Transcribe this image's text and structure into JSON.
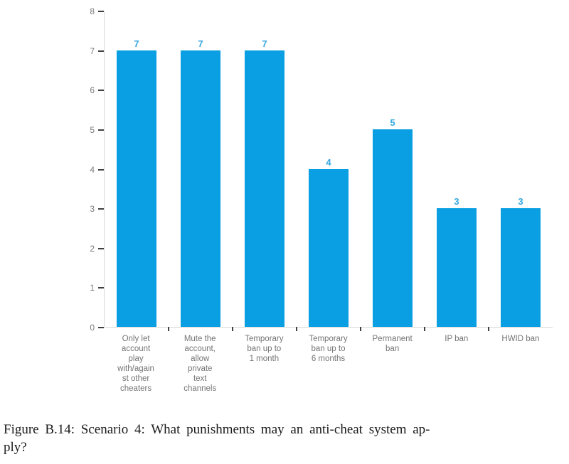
{
  "figure": {
    "caption_lines": [
      "Figure B.14: Scenario 4: What punishments may an anti-cheat system ap-",
      "ply?"
    ]
  },
  "chart_data": {
    "type": "bar",
    "title": "",
    "xlabel": "",
    "ylabel": "",
    "categories": [
      "Only let account play with/again st other cheaters",
      "Mute the account, allow private text channels",
      "Temporary ban up to 1 month",
      "Temporary ban up to 6 months",
      "Permanent ban",
      "IP ban",
      "HWID ban"
    ],
    "category_wrapped_lines": [
      "Only let\naccount\nplay\nwith/again\nst other\ncheaters",
      "Mute the\naccount,\nallow\nprivate\ntext\nchannels",
      "Temporary\nban up to\n1 month",
      "Temporary\nban up to\n6 months",
      "Permanent\nban",
      "IP ban",
      "HWID ban"
    ],
    "values": [
      7,
      7,
      7,
      4,
      5,
      3,
      3
    ],
    "ylim": [
      0,
      8
    ],
    "yticks": [
      0,
      1,
      2,
      3,
      4,
      5,
      6,
      7,
      8
    ],
    "grid": false,
    "legend": "none",
    "data_labels": true,
    "colors": {
      "bar": "#0a9ee2",
      "value_label": "#35a7e0",
      "axis_line": "#d9d9d9",
      "tick_mark": "#404040",
      "tick_label": "#7a7a7a",
      "category_label": "#757575",
      "caption_text": "#1a1a1a"
    }
  }
}
